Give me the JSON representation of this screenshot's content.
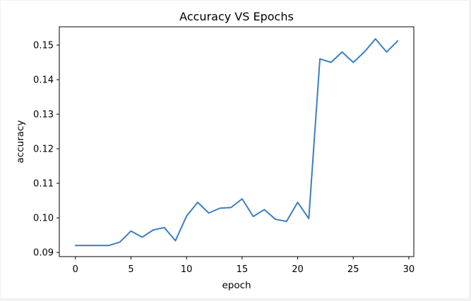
{
  "chart_data": {
    "type": "line",
    "title": "Accuracy VS Epochs",
    "xlabel": "epoch",
    "ylabel": "accuracy",
    "xlim": [
      -1.45,
      30.45
    ],
    "ylim": [
      0.0888,
      0.1553
    ],
    "x_ticks": [
      0,
      5,
      10,
      15,
      20,
      25,
      30
    ],
    "y_ticks": [
      0.09,
      0.1,
      0.11,
      0.12,
      0.13,
      0.14,
      0.15
    ],
    "x_tick_labels": [
      "0",
      "5",
      "10",
      "15",
      "20",
      "25",
      "30"
    ],
    "y_tick_labels": [
      "0.09",
      "0.10",
      "0.11",
      "0.12",
      "0.13",
      "0.14",
      "0.15"
    ],
    "grid": false,
    "series": [
      {
        "color": "#3a7fbf",
        "x": [
          0,
          1,
          2,
          3,
          4,
          5,
          6,
          7,
          8,
          9,
          10,
          11,
          12,
          13,
          14,
          15,
          16,
          17,
          18,
          19,
          20,
          21,
          22,
          23,
          24,
          25,
          26,
          27,
          28,
          29
        ],
        "y": [
          0.092,
          0.092,
          0.092,
          0.092,
          0.093,
          0.0962,
          0.0944,
          0.0965,
          0.0972,
          0.0934,
          0.1005,
          0.1045,
          0.1014,
          0.1028,
          0.103,
          0.1055,
          0.1004,
          0.1024,
          0.0996,
          0.099,
          0.1045,
          0.0998,
          0.146,
          0.145,
          0.148,
          0.145,
          0.148,
          0.1518,
          0.148,
          0.1512
        ]
      }
    ]
  }
}
